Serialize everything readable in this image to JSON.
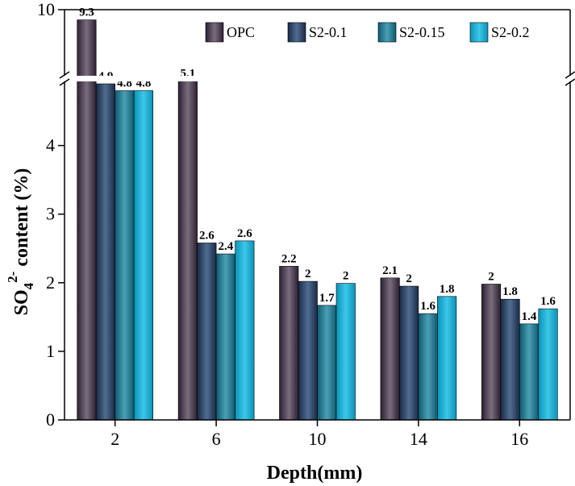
{
  "chart_data": {
    "type": "bar",
    "title": "",
    "xlabel": "Depth(mm)",
    "ylabel_main": "SO",
    "ylabel_sub": "4",
    "ylabel_sup": "2-",
    "ylabel_rest": " content (%)",
    "categories": [
      "2",
      "6",
      "10",
      "14",
      "16"
    ],
    "series": [
      {
        "name": "OPC",
        "values": [
          9.3,
          5.1,
          2.24,
          2.07,
          1.98
        ],
        "labels": [
          "9.3",
          "5.1",
          "2.2",
          "2.1",
          "2"
        ],
        "colors": [
          "#2b2030",
          "#7a6d80",
          "#2b2030"
        ]
      },
      {
        "name": "S2-0.1",
        "values": [
          4.9,
          2.58,
          2.02,
          1.95,
          1.76
        ],
        "labels": [
          "4.9",
          "2.6",
          "2",
          "2",
          "1.8"
        ],
        "colors": [
          "#1a2a45",
          "#4f6d92",
          "#1a2a45"
        ]
      },
      {
        "name": "S2-0.15",
        "values": [
          4.8,
          2.42,
          1.67,
          1.55,
          1.4
        ],
        "labels": [
          "4.8",
          "2.4",
          "1.7",
          "1.6",
          "1.4"
        ],
        "colors": [
          "#0f5a6f",
          "#4aa0b5",
          "#0f5a6f"
        ]
      },
      {
        "name": "S2-0.2",
        "values": [
          4.8,
          2.61,
          1.99,
          1.8,
          1.62
        ],
        "labels": [
          "4.8",
          "2.6",
          "2",
          "1.8",
          "1.6"
        ],
        "colors": [
          "#0a93b8",
          "#3cc8e8",
          "#0a93b8"
        ]
      }
    ],
    "y_ticks": [
      "0",
      "1",
      "2",
      "3",
      "4"
    ],
    "y_top_tick": "10",
    "ylim_lower": [
      0,
      4.9
    ],
    "ylim_upper": [
      4.9,
      10
    ],
    "axis_break": true,
    "legend_position": "top-right"
  }
}
